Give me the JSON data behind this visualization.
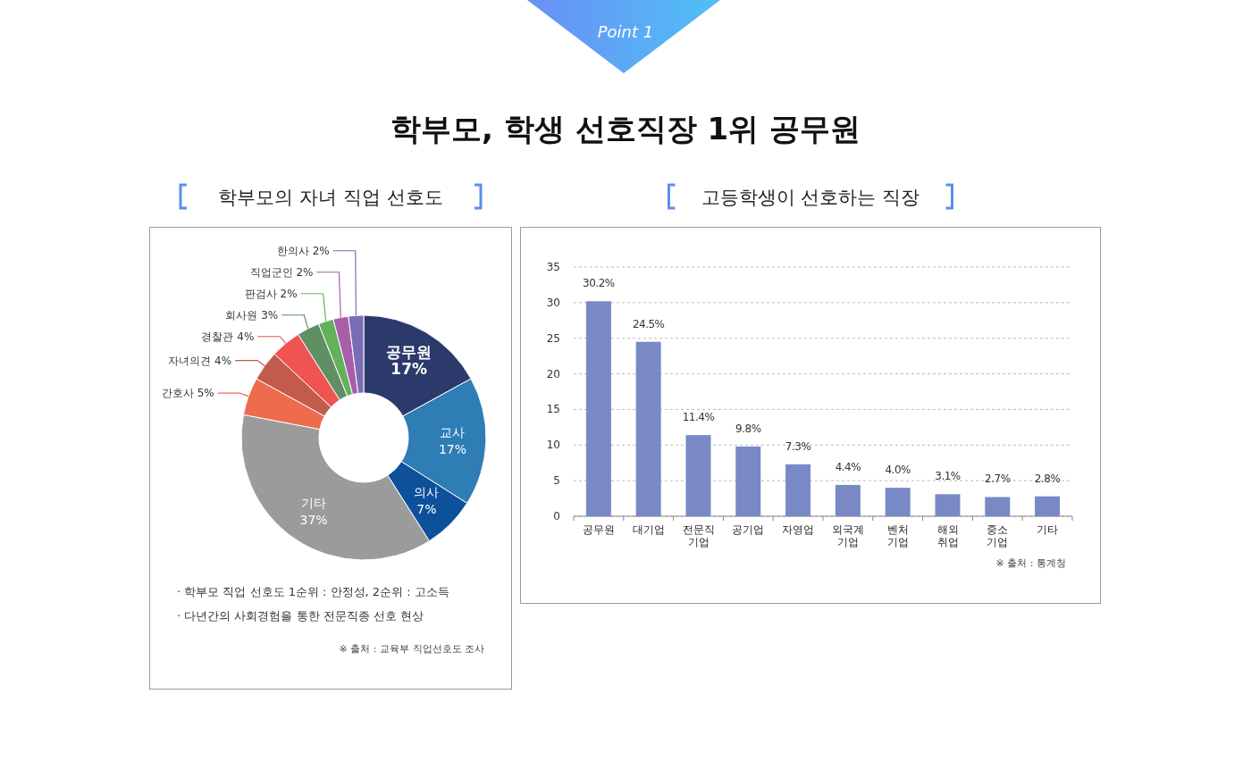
{
  "chart_data": [
    {
      "type": "donut",
      "title": "학부모의 자녀 직업 선호도",
      "categories": [
        "공무원",
        "교사",
        "의사",
        "기타",
        "간호사",
        "자녀의견",
        "경찰관",
        "회사원",
        "판검사",
        "직업군인",
        "한의사"
      ],
      "values": [
        17,
        17,
        7,
        37,
        5,
        4,
        4,
        3,
        2,
        2,
        2
      ],
      "value_labels": [
        "17%",
        "17%",
        "7%",
        "37%",
        "5%",
        "4%",
        "4%",
        "3%",
        "2%",
        "2%",
        "2%"
      ],
      "colors": [
        "#2b3a6b",
        "#2e7db5",
        "#0d519b",
        "#9a9b9a",
        "#ee6b4e",
        "#c25b4b",
        "#ef5352",
        "#5f8f63",
        "#63b15b",
        "#a95ea9",
        "#7b6cb6"
      ],
      "annotations": [
        "Point 1",
        "학부모, 학생 선호직장 1위 공무원",
        "· 학부모 직업 선호도 1순위 : 안정성, 2순위 : 고소득",
        "· 다년간의 사회경험을 통한 전문직종 선호 현상",
        "※ 출처 : 교육부 직업선호도 조사"
      ]
    },
    {
      "type": "bar",
      "title": "고등학생이 선호하는 직장",
      "categories": [
        "공무원",
        "대기업",
        "전문직\n기업",
        "공기업",
        "자영업",
        "외국계\n기업",
        "벤처\n기업",
        "해외\n취업",
        "중소\n기업",
        "기타"
      ],
      "values": [
        30.2,
        24.5,
        11.4,
        9.8,
        7.3,
        4.4,
        4.0,
        3.1,
        2.7,
        2.8
      ],
      "value_labels": [
        "30.2%",
        "24.5%",
        "11.4%",
        "9.8%",
        "7.3%",
        "4.4%",
        "4.0%",
        "3.1%",
        "2.7%",
        "2.8%"
      ],
      "color": "#7889c6",
      "ylim": [
        0,
        35
      ],
      "yticks": [
        0,
        5,
        10,
        15,
        20,
        25,
        30,
        35
      ],
      "grid": "y",
      "annotations": [
        "※ 출처 : 통계청"
      ]
    }
  ]
}
